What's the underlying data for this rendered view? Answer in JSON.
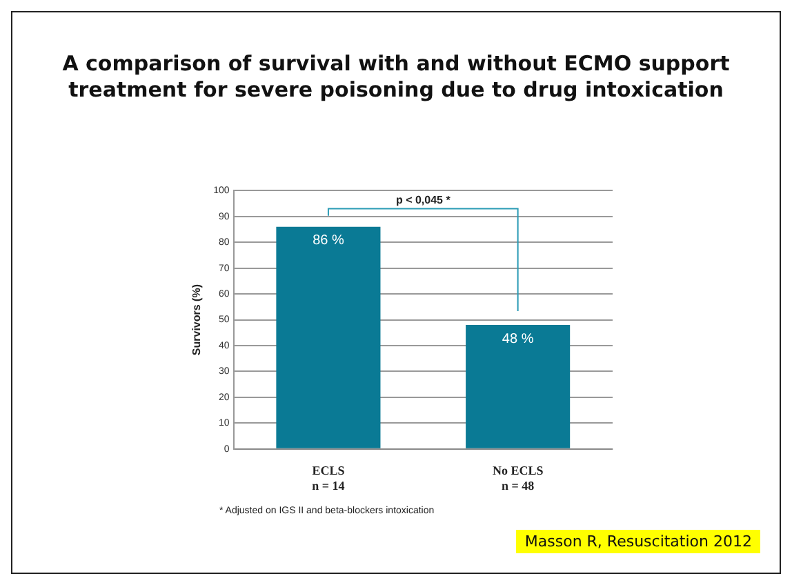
{
  "chart_data": {
    "type": "bar",
    "title": "A comparison of survival with and without ECMO support treatment for severe poisoning due to drug intoxication",
    "ylabel": "Survivors (%)",
    "categories": [
      "ECLS\nn = 14",
      "No ECLS\nn = 48"
    ],
    "values": [
      86,
      48
    ],
    "color": "#0a7a95",
    "value_labels": [
      "86 %",
      "48 %"
    ],
    "ylim": [
      0,
      100
    ],
    "yticks": [
      0,
      10,
      20,
      30,
      40,
      50,
      60,
      70,
      80,
      90,
      100
    ],
    "grid": "y",
    "annotations": [
      "p < 0,045 *",
      "* Adjusted on IGS II and beta-blockers intoxication",
      "Masson R, Resuscitation 2012"
    ]
  }
}
